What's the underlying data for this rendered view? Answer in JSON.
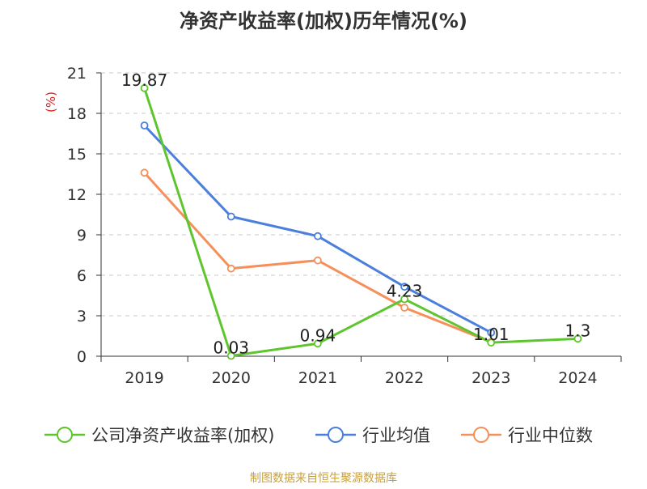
{
  "chart_data": {
    "type": "line",
    "title": "净资产收益率(加权)历年情况(%)",
    "ylabel": "(%)",
    "x": [
      "2019",
      "2020",
      "2021",
      "2022",
      "2023",
      "2024"
    ],
    "ylim": [
      0,
      21
    ],
    "yticks": [
      0,
      3,
      6,
      9,
      12,
      15,
      18,
      21
    ],
    "grid": true,
    "legend_position": "bottom",
    "series": [
      {
        "name": "公司净资产收益率(加权)",
        "color": "#5fc52e",
        "values": [
          19.87,
          0.03,
          0.94,
          4.23,
          1.01,
          1.3
        ],
        "labels": [
          "19.87",
          "0.03",
          "0.94",
          "4.23",
          "1.01",
          "1.3"
        ]
      },
      {
        "name": "行业均值",
        "color": "#4a7fdc",
        "values": [
          17.1,
          10.35,
          8.9,
          5.15,
          1.75,
          null
        ]
      },
      {
        "name": "行业中位数",
        "color": "#f5905a",
        "values": [
          13.6,
          6.5,
          7.1,
          3.6,
          1.05,
          null
        ]
      }
    ],
    "source": "制图数据来自恒生聚源数据库",
    "source_color": "#c8a03c",
    "ylabel_color": "#e02020"
  }
}
